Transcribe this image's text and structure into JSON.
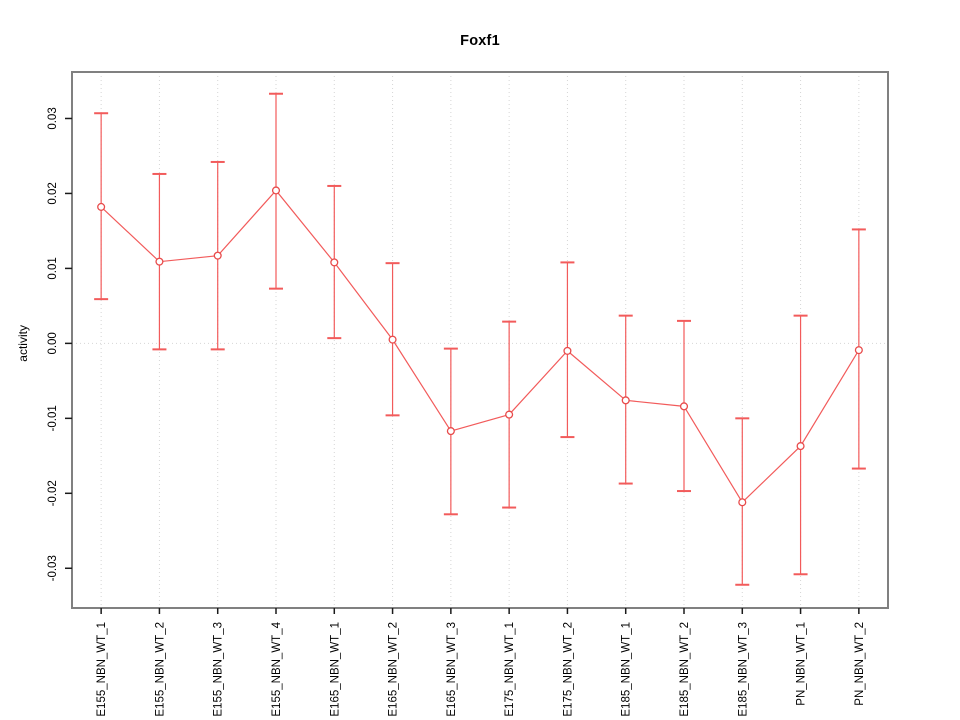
{
  "chart_data": {
    "type": "line",
    "title": "Foxf1",
    "xlabel": "",
    "ylabel": "activity",
    "legend": "none",
    "grid": {
      "vertical": "dotted line at each category",
      "horizontal": "dotted line at y=0"
    },
    "categories": [
      "E155_NBN_WT_1",
      "E155_NBN_WT_2",
      "E155_NBN_WT_3",
      "E155_NBN_WT_4",
      "E165_NBN_WT_1",
      "E165_NBN_WT_2",
      "E165_NBN_WT_3",
      "E175_NBN_WT_1",
      "E175_NBN_WT_2",
      "E185_NBN_WT_1",
      "E185_NBN_WT_2",
      "E185_NBN_WT_3",
      "PN_NBN_WT_1",
      "PN_NBN_WT_2"
    ],
    "series": [
      {
        "name": "activity",
        "marker": "open-circle",
        "values": [
          0.0182,
          0.0109,
          0.0117,
          0.0204,
          0.0108,
          0.0005,
          -0.0117,
          -0.0095,
          -0.001,
          -0.0076,
          -0.0084,
          -0.0212,
          -0.0137,
          -0.0009
        ],
        "upper": [
          0.0307,
          0.0226,
          0.0242,
          0.0333,
          0.021,
          0.0107,
          -0.0007,
          0.0029,
          0.0108,
          0.0037,
          0.003,
          -0.01,
          0.0037,
          0.0152
        ],
        "lower": [
          0.0059,
          -0.0008,
          -0.0008,
          0.0073,
          0.0007,
          -0.0096,
          -0.0228,
          -0.0219,
          -0.0125,
          -0.0187,
          -0.0197,
          -0.0322,
          -0.0308,
          -0.0167
        ]
      }
    ],
    "y_ticks": [
      -0.03,
      -0.02,
      -0.01,
      0,
      0.01,
      0.02,
      0.03
    ],
    "y_tick_labels": [
      "-0.03",
      "-0.02",
      "-0.01",
      "0.00",
      "0.01",
      "0.02",
      "0.03"
    ],
    "ylim": [
      -0.0353,
      0.0362
    ],
    "colors": {
      "series": "#f25b5b",
      "marker_stroke": "#e84b4b",
      "grid": "#d6d6d6",
      "plot_border": "#808080",
      "tick": "#1a1a1a",
      "text": "#000000",
      "background": "#ffffff"
    }
  }
}
